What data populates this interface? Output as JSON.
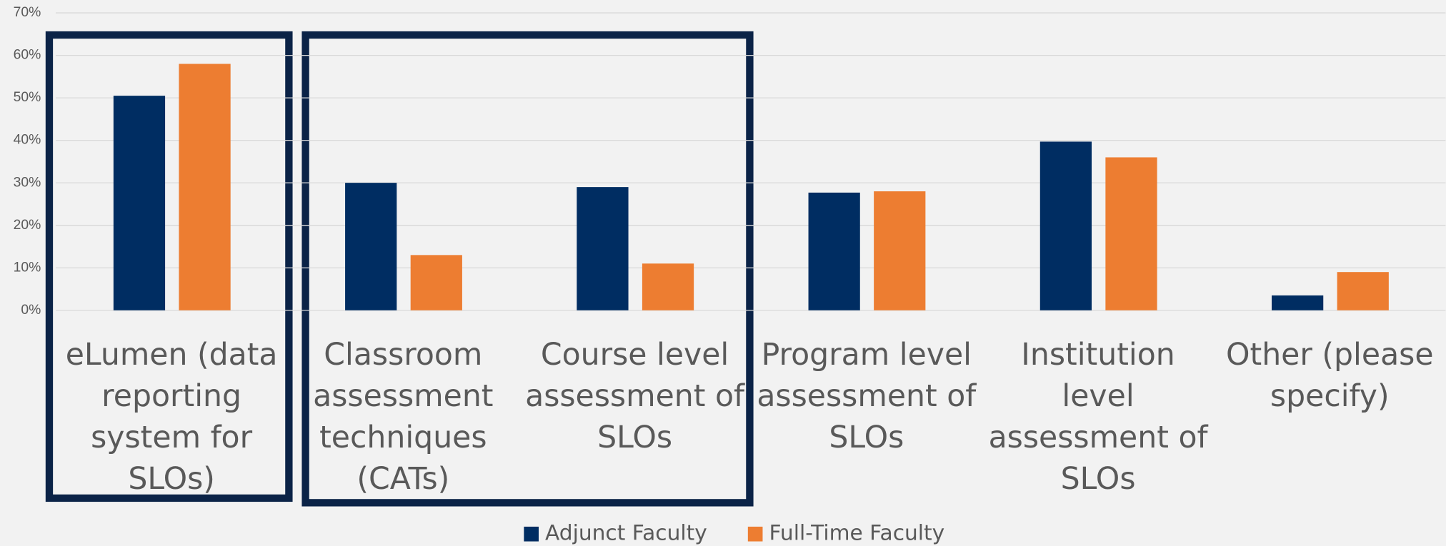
{
  "chart_data": {
    "type": "bar",
    "categories": [
      "eLumen (data reporting system for SLOs)",
      "Classroom assessment techniques (CATs)",
      "Course level assessment of SLOs",
      "Program level assessment of SLOs",
      "Institution level assessment of SLOs",
      "Other (please specify)"
    ],
    "series": [
      {
        "name": "Adjunct Faculty",
        "color": "#002d62",
        "values": [
          50.5,
          30,
          29,
          27.7,
          39.7,
          3.5
        ]
      },
      {
        "name": "Full-Time Faculty",
        "color": "#ed7d31",
        "values": [
          58,
          13,
          11,
          28,
          36,
          9
        ]
      }
    ],
    "ylim": [
      0,
      70
    ],
    "yticks": [
      {
        "value": 0,
        "label": "0%"
      },
      {
        "value": 10,
        "label": "10%"
      },
      {
        "value": 20,
        "label": "20%"
      },
      {
        "value": 30,
        "label": "30%"
      },
      {
        "value": 40,
        "label": "40%"
      },
      {
        "value": 50,
        "label": "50%"
      },
      {
        "value": 60,
        "label": "60%"
      },
      {
        "value": 70,
        "label": "70%"
      }
    ],
    "grid": true,
    "legend": "bottom"
  }
}
